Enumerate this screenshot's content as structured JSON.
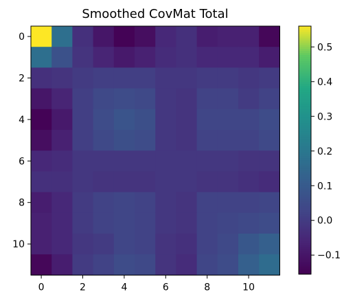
{
  "chart_data": {
    "type": "heatmap",
    "title": "Smoothed CovMat Total",
    "xlabel": "",
    "ylabel": "",
    "colormap": "viridis",
    "vmin": -0.155,
    "vmax": 0.56,
    "x_ticks": [
      "0",
      "2",
      "4",
      "6",
      "8",
      "10"
    ],
    "y_ticks": [
      "0",
      "2",
      "4",
      "6",
      "8",
      "10"
    ],
    "colorbar_ticks": [
      "−0.1",
      "0.0",
      "0.1",
      "0.2",
      "0.3",
      "0.4",
      "0.5"
    ],
    "matrix": [
      [
        0.56,
        0.17,
        -0.03,
        -0.1,
        -0.15,
        -0.12,
        -0.05,
        -0.03,
        -0.08,
        -0.07,
        -0.07,
        -0.14
      ],
      [
        0.17,
        0.07,
        -0.02,
        -0.06,
        -0.09,
        -0.07,
        -0.04,
        -0.03,
        -0.05,
        -0.05,
        -0.05,
        -0.08
      ],
      [
        -0.03,
        -0.02,
        0.0,
        0.01,
        0.01,
        0.01,
        -0.01,
        -0.01,
        0.0,
        0.0,
        -0.01,
        0.0
      ],
      [
        -0.1,
        -0.06,
        0.01,
        0.04,
        0.05,
        0.04,
        -0.01,
        -0.02,
        0.02,
        0.02,
        0.0,
        0.02
      ],
      [
        -0.15,
        -0.09,
        0.01,
        0.05,
        0.08,
        0.06,
        -0.01,
        -0.02,
        0.03,
        0.03,
        0.03,
        0.05
      ],
      [
        -0.12,
        -0.07,
        0.01,
        0.04,
        0.06,
        0.05,
        -0.01,
        -0.02,
        0.02,
        0.02,
        0.02,
        0.04
      ],
      [
        -0.05,
        -0.04,
        -0.01,
        -0.01,
        -0.01,
        -0.01,
        -0.01,
        -0.01,
        -0.01,
        -0.01,
        -0.02,
        -0.02
      ],
      [
        -0.03,
        -0.03,
        -0.01,
        -0.02,
        -0.02,
        -0.02,
        -0.01,
        -0.01,
        -0.02,
        -0.02,
        -0.03,
        -0.04
      ],
      [
        -0.08,
        -0.05,
        0.0,
        0.02,
        0.03,
        0.02,
        -0.01,
        -0.02,
        0.02,
        0.02,
        0.02,
        0.03
      ],
      [
        -0.07,
        -0.05,
        0.0,
        0.02,
        0.03,
        0.02,
        -0.01,
        -0.02,
        0.02,
        0.03,
        0.04,
        0.05
      ],
      [
        -0.07,
        -0.05,
        -0.01,
        0.0,
        0.03,
        0.02,
        -0.02,
        -0.03,
        0.02,
        0.04,
        0.09,
        0.12
      ],
      [
        -0.14,
        -0.08,
        0.0,
        0.02,
        0.05,
        0.04,
        -0.02,
        -0.04,
        0.03,
        0.05,
        0.12,
        0.16
      ]
    ]
  }
}
